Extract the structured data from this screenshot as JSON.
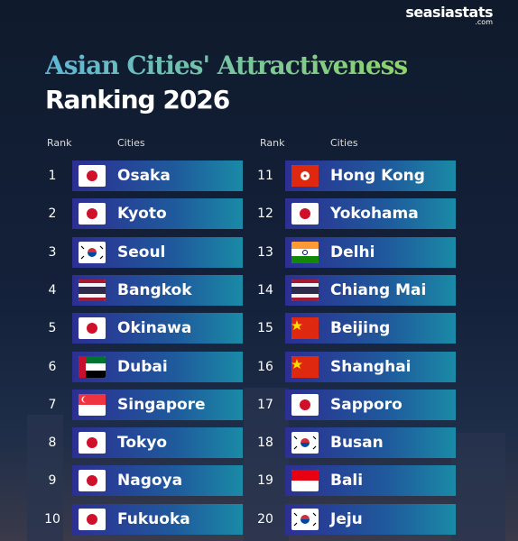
{
  "header": {
    "brand": "seasiastats",
    "brand_suffix": ".com",
    "title_line1": "Asian Cities' Attractiveness",
    "title_line2": "Ranking 2026"
  },
  "columns": [
    {
      "rank_header": "Rank",
      "city_header": "Cities",
      "rows": [
        {
          "rank": 1,
          "city": "Osaka"
        },
        {
          "rank": 2,
          "city": "Kyoto"
        },
        {
          "rank": 3,
          "city": "Seoul"
        },
        {
          "rank": 4,
          "city": "Bangkok"
        },
        {
          "rank": 5,
          "city": "Okinawa"
        },
        {
          "rank": 6,
          "city": "Dubai"
        },
        {
          "rank": 7,
          "city": "Singapore"
        },
        {
          "rank": 8,
          "city": "Tokyo"
        },
        {
          "rank": 9,
          "city": "Nagoya"
        },
        {
          "rank": 10,
          "city": "Fukuoka"
        }
      ]
    },
    {
      "rank_header": "Rank",
      "city_header": "Cities",
      "rows": [
        {
          "rank": 11,
          "city": "Hong Kong"
        },
        {
          "rank": 12,
          "city": "Yokohama"
        },
        {
          "rank": 13,
          "city": "Delhi"
        },
        {
          "rank": 14,
          "city": "Chiang Mai"
        },
        {
          "rank": 15,
          "city": "Beijing"
        },
        {
          "rank": 16,
          "city": "Shanghai"
        },
        {
          "rank": 17,
          "city": "Sapporo"
        },
        {
          "rank": 18,
          "city": "Busan"
        },
        {
          "rank": 19,
          "city": "Bali"
        },
        {
          "rank": 20,
          "city": "Jeju"
        }
      ]
    }
  ]
}
